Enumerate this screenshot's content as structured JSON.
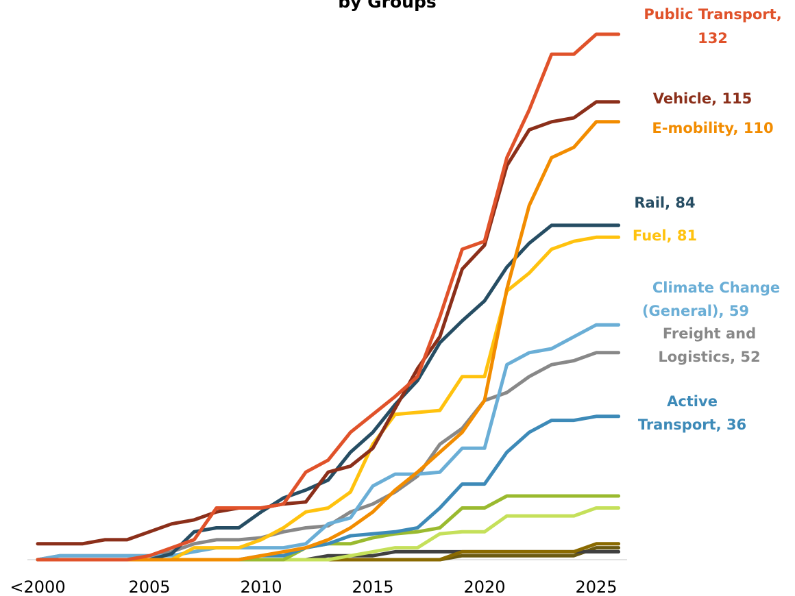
{
  "chart_data": {
    "type": "line",
    "title": "by Groups",
    "categories": [
      "<2000",
      null,
      null,
      null,
      null,
      "2005",
      null,
      null,
      null,
      null,
      "2010",
      null,
      null,
      null,
      null,
      "2015",
      null,
      null,
      null,
      null,
      "2020",
      null,
      null,
      null,
      null,
      "2025",
      null
    ],
    "ylim": [
      0,
      132
    ],
    "series": [
      {
        "color": "#6b5a10",
        "values": [
          0,
          0,
          0,
          0,
          0,
          0,
          0,
          0,
          0,
          0,
          0,
          0,
          0,
          0,
          0,
          0,
          0,
          0,
          0,
          1,
          1,
          1,
          1,
          1,
          1,
          3,
          3
        ]
      },
      {
        "color": "#404040",
        "values": [
          0,
          0,
          0,
          0,
          0,
          0,
          0,
          0,
          0,
          0,
          0,
          0,
          0,
          1,
          1,
          1,
          2,
          2,
          2,
          2,
          2,
          2,
          2,
          2,
          2,
          2,
          2
        ]
      },
      {
        "color": "#8a6a00",
        "values": [
          0,
          0,
          0,
          0,
          0,
          0,
          0,
          0,
          0,
          0,
          0,
          0,
          0,
          0,
          0,
          0,
          0,
          0,
          0,
          2,
          2,
          2,
          2,
          2,
          2,
          4,
          4
        ]
      },
      {
        "color": "#c5e05a",
        "values": [
          0,
          0,
          0,
          0,
          0,
          0,
          0,
          0,
          0,
          0,
          0,
          0,
          0,
          0,
          1,
          2,
          3,
          3,
          6.5,
          7,
          7,
          11,
          11,
          11,
          11,
          13,
          13
        ]
      },
      {
        "color": "#9aba2f",
        "values": [
          0,
          0,
          0,
          0,
          0,
          0,
          0,
          0,
          0,
          0,
          0,
          0,
          3,
          4,
          4,
          5.5,
          6.5,
          7,
          8,
          13,
          13,
          16,
          16,
          16,
          16,
          16,
          16
        ]
      },
      {
        "name": "Active Transport",
        "label": [
          "Active",
          "Transport, 36"
        ],
        "color": "#3d8ab8",
        "values": [
          0,
          0,
          0,
          0,
          0,
          0,
          0,
          0,
          0,
          0,
          1,
          1,
          3,
          4,
          6,
          6.5,
          7,
          8,
          13,
          19,
          19,
          27,
          32,
          35,
          35,
          36,
          36
        ]
      },
      {
        "name": "Freight and Logistics",
        "label": [
          "Freight and",
          "Logistics, 52"
        ],
        "color": "#888888",
        "values": [
          0,
          1,
          1,
          1,
          1,
          1,
          2,
          4,
          5,
          5,
          5.5,
          7,
          8,
          8.5,
          12,
          14,
          17,
          21,
          29,
          33,
          40,
          42,
          46,
          49,
          50,
          52,
          52
        ]
      },
      {
        "name": "Climate Change (General)",
        "label": [
          "Climate Change",
          "(General), 59"
        ],
        "color": "#6aaed6",
        "values": [
          0,
          1,
          1,
          1,
          1,
          1,
          1,
          2,
          3,
          3,
          3,
          3,
          4,
          9,
          10.5,
          18.5,
          21.5,
          21.5,
          22,
          28,
          28,
          49,
          52,
          53,
          56,
          59,
          59
        ]
      },
      {
        "name": "Fuel",
        "label": [
          "Fuel, 81"
        ],
        "color": "#ffc20e",
        "values": [
          0,
          0,
          0,
          0,
          0,
          0,
          0,
          3,
          3,
          3,
          5,
          8,
          12,
          13,
          17,
          29,
          36.5,
          37,
          37.5,
          46,
          46,
          67.5,
          72,
          78,
          80,
          81,
          81
        ]
      },
      {
        "name": "Rail",
        "label": [
          "Rail, 84"
        ],
        "color": "#264d63",
        "values": [
          0,
          0,
          0,
          0,
          0,
          0,
          1.5,
          7,
          8,
          8,
          12,
          15.5,
          17.5,
          20,
          27,
          32,
          39,
          45,
          54.5,
          60,
          65,
          73.5,
          79.5,
          84,
          84,
          84,
          84
        ]
      },
      {
        "name": "E-mobility",
        "label": [
          "E-mobility, 110"
        ],
        "color": "#f28c00",
        "values": [
          0,
          0,
          0,
          0,
          0,
          0,
          0,
          0,
          0,
          0,
          1,
          2,
          3,
          5,
          8,
          12,
          17.5,
          22,
          27,
          32,
          40,
          68,
          89,
          101,
          103.6,
          110,
          110
        ]
      },
      {
        "name": "Vehicle",
        "label": [
          "Vehicle, 115"
        ],
        "color": "#8b2f1a",
        "values": [
          4,
          4,
          4,
          5,
          5,
          7,
          9,
          10,
          12,
          13,
          13,
          14,
          14.5,
          22,
          23.5,
          28,
          38,
          48,
          56,
          73,
          79,
          99,
          108,
          110,
          111,
          115,
          115
        ]
      },
      {
        "name": "Public Transport",
        "label": [
          "Public Transport,",
          "132"
        ],
        "color": "#e0522a",
        "values": [
          0,
          0,
          0,
          0,
          0,
          1,
          3,
          5,
          13,
          13,
          13,
          14,
          22,
          25,
          32,
          36.5,
          41,
          46,
          61,
          78,
          80,
          101,
          113,
          127,
          127,
          132,
          132
        ]
      }
    ]
  }
}
